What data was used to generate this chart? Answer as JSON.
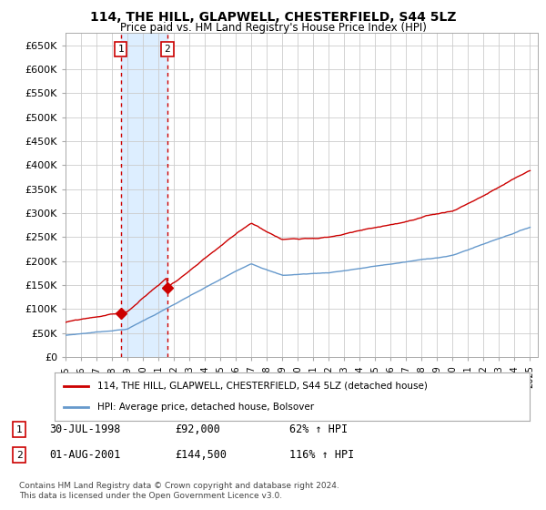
{
  "title": "114, THE HILL, GLAPWELL, CHESTERFIELD, S44 5LZ",
  "subtitle": "Price paid vs. HM Land Registry's House Price Index (HPI)",
  "legend_line1": "114, THE HILL, GLAPWELL, CHESTERFIELD, S44 5LZ (detached house)",
  "legend_line2": "HPI: Average price, detached house, Bolsover",
  "footer": "Contains HM Land Registry data © Crown copyright and database right 2024.\nThis data is licensed under the Open Government Licence v3.0.",
  "transaction1_date": "30-JUL-1998",
  "transaction1_price": "£92,000",
  "transaction1_hpi": "62% ↑ HPI",
  "transaction2_date": "01-AUG-2001",
  "transaction2_price": "£144,500",
  "transaction2_hpi": "116% ↑ HPI",
  "yticks": [
    0,
    50000,
    100000,
    150000,
    200000,
    250000,
    300000,
    350000,
    400000,
    450000,
    500000,
    550000,
    600000,
    650000
  ],
  "ytick_labels": [
    "£0",
    "£50K",
    "£100K",
    "£150K",
    "£200K",
    "£250K",
    "£300K",
    "£350K",
    "£400K",
    "£450K",
    "£500K",
    "£550K",
    "£600K",
    "£650K"
  ],
  "hpi_color": "#6699cc",
  "price_color": "#cc0000",
  "shade_color": "#ddeeff",
  "point1_x": 1998.57,
  "point1_y": 92000,
  "point2_x": 2001.58,
  "point2_y": 144500,
  "vline1_x": 1998.57,
  "vline2_x": 2001.58,
  "xmin": 1995.0,
  "xmax": 2025.5,
  "ymin": 0,
  "ymax": 675000,
  "background_color": "#ffffff",
  "grid_color": "#cccccc"
}
